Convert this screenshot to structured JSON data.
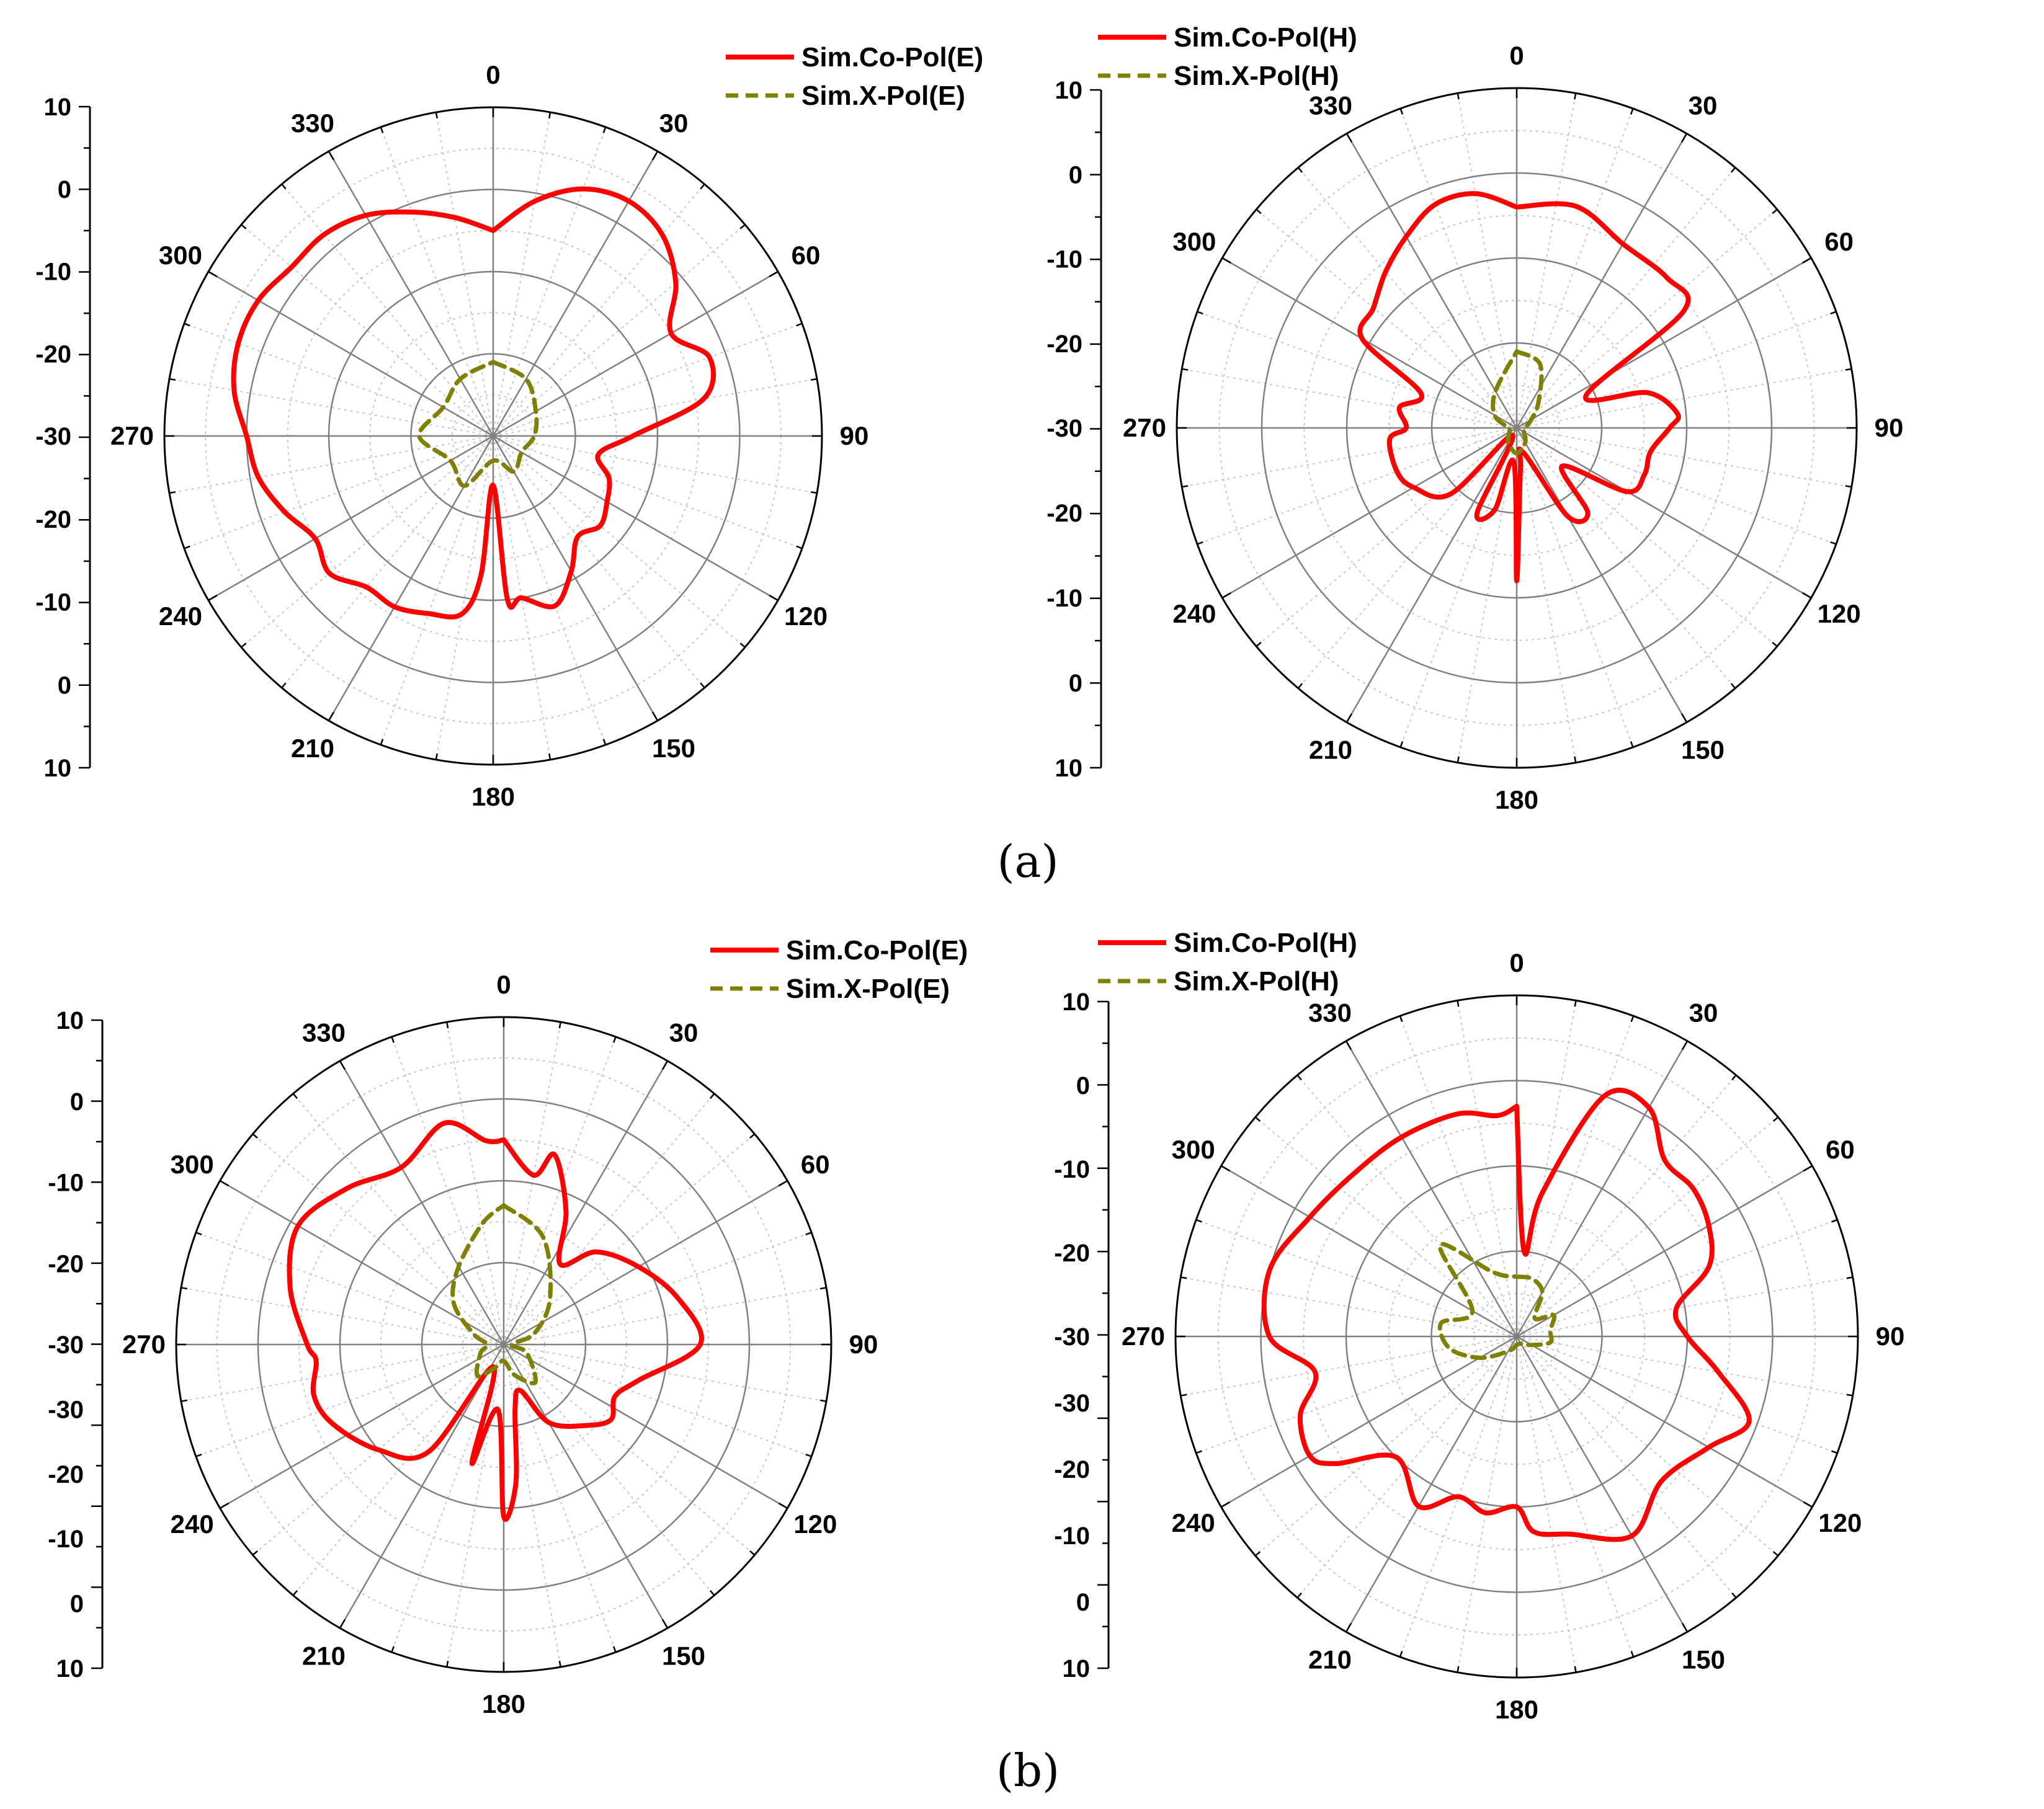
{
  "colors": {
    "co_pol": "#ff0000",
    "x_pol": "#808000",
    "axis": "#000000",
    "grid_major": "#808080",
    "grid_minor": "#c8c8c8"
  },
  "captions": {
    "a": "(a)",
    "b": "(b)"
  },
  "chart_data": [
    {
      "id": "a-left",
      "type": "polar-line",
      "title": "",
      "radial_axis_label": "",
      "rlim": [
        -30,
        10
      ],
      "radial_ticks": [
        10,
        0,
        -10,
        -20,
        -30
      ],
      "tick_labels_top": [
        "10",
        "0",
        "-10",
        "-20",
        "-30"
      ],
      "tick_labels_bottom": [
        "-20",
        "-10",
        "0",
        "10"
      ],
      "angle_labels": [
        "0",
        "30",
        "60",
        "90",
        "120",
        "150",
        "180",
        "210",
        "240",
        "270",
        "300",
        "330"
      ],
      "legend": [
        "Sim.Co-Pol(E)",
        "Sim.X-Pol(E)"
      ],
      "legend_position": "top-right",
      "series": [
        {
          "name": "Sim.Co-Pol(E)",
          "style": "solid",
          "theta": [
            0,
            10,
            20,
            30,
            40,
            50,
            60,
            70,
            80,
            90,
            100,
            110,
            120,
            130,
            140,
            150,
            160,
            170,
            175,
            180,
            185,
            190,
            200,
            210,
            220,
            230,
            240,
            250,
            260,
            270,
            280,
            290,
            300,
            310,
            320,
            330,
            340,
            350,
            360
          ],
          "r": [
            -5,
            -1,
            2,
            3,
            2,
            -1,
            -5,
            -2,
            -4,
            -13,
            -17,
            -15,
            -14,
            -13,
            -14,
            -11,
            -8,
            -10,
            -10,
            -24,
            -13,
            -8,
            -7,
            -6,
            -6,
            -4,
            -5,
            -3,
            -1,
            0,
            2,
            3,
            3,
            2,
            2,
            1,
            -1,
            -3,
            -5
          ]
        },
        {
          "name": "Sim.X-Pol(E)",
          "style": "dashed",
          "theta": [
            0,
            30,
            60,
            90,
            120,
            150,
            180,
            210,
            240,
            270,
            300,
            330,
            360
          ],
          "r": [
            -21,
            -22,
            -24,
            -25,
            -26,
            -25,
            -27,
            -23,
            -24,
            -21,
            -23,
            -22,
            -21
          ]
        }
      ]
    },
    {
      "id": "a-right",
      "type": "polar-line",
      "title": "",
      "radial_axis_label": "",
      "rlim": [
        -30,
        10
      ],
      "radial_ticks": [
        10,
        0,
        -10,
        -20,
        -30
      ],
      "tick_labels_top": [
        "10",
        "0",
        "-10",
        "-20",
        "-30"
      ],
      "tick_labels_bottom": [
        "-20",
        "-10",
        "0",
        "10"
      ],
      "angle_labels": [
        "0",
        "30",
        "60",
        "90",
        "120",
        "150",
        "180",
        "210",
        "240",
        "270",
        "300",
        "330"
      ],
      "legend": [
        "Sim.Co-Pol(H)",
        "Sim.X-Pol(H)"
      ],
      "legend_position": "top-right",
      "series": [
        {
          "name": "Sim.Co-Pol(H)",
          "style": "solid",
          "theta": [
            0,
            15,
            30,
            45,
            55,
            65,
            75,
            85,
            90,
            100,
            110,
            120,
            130,
            140,
            150,
            165,
            175,
            180,
            185,
            195,
            205,
            210,
            225,
            240,
            250,
            265,
            270,
            280,
            290,
            300,
            310,
            320,
            330,
            340,
            350,
            360
          ],
          "r": [
            -4,
            -3,
            -5,
            -5,
            -6,
            -21,
            -14,
            -11,
            -12,
            -14,
            -14,
            -15,
            -23,
            -17,
            -18,
            -27,
            -25,
            -12,
            -26,
            -20,
            -19,
            -29,
            -19,
            -16,
            -15,
            -15,
            -17,
            -16,
            -18,
            -9,
            -8,
            -6,
            -4,
            -2,
            -2,
            -4
          ]
        },
        {
          "name": "Sim.X-Pol(H)",
          "style": "dashed",
          "theta": [
            0,
            20,
            40,
            60,
            90,
            120,
            150,
            180,
            210,
            240,
            270,
            300,
            330,
            360
          ],
          "r": [
            -21,
            -22,
            -26,
            -28,
            -29,
            -29,
            -28,
            -27,
            -28,
            -29,
            -29,
            -27,
            -25,
            -21
          ]
        }
      ]
    },
    {
      "id": "b-left",
      "type": "polar-line",
      "title": "",
      "radial_axis_label": "",
      "rlim": [
        -30,
        10
      ],
      "radial_ticks": [
        10,
        0,
        -10,
        -20,
        -30
      ],
      "tick_labels_top": [
        "10",
        "0",
        "-10",
        "-20",
        "-30"
      ],
      "tick_labels_bottom": [
        "-30",
        "-20",
        "-10",
        "0",
        "10"
      ],
      "angle_labels": [
        "0",
        "30",
        "60",
        "90",
        "120",
        "150",
        "180",
        "210",
        "240",
        "270",
        "300",
        "330"
      ],
      "legend": [
        "Sim.Co-Pol(E)",
        "Sim.X-Pol(E)"
      ],
      "legend_position": "top-right",
      "series": [
        {
          "name": "Sim.Co-Pol(E)",
          "style": "solid",
          "theta": [
            0,
            10,
            15,
            25,
            35,
            45,
            60,
            75,
            90,
            105,
            115,
            125,
            135,
            150,
            160,
            170,
            175,
            180,
            185,
            195,
            205,
            215,
            230,
            245,
            255,
            265,
            270,
            285,
            300,
            315,
            330,
            345,
            355,
            360
          ],
          "r": [
            -5,
            -9,
            -6,
            -12,
            -18,
            -14,
            -11,
            -8,
            -6,
            -13,
            -15,
            -14,
            -16,
            -19,
            -24,
            -22,
            -13,
            -9,
            -22,
            -15,
            -27,
            -14,
            -10,
            -7,
            -6,
            -7,
            -6,
            -3,
            -1,
            -3,
            -5,
            -2,
            -5,
            -5
          ]
        },
        {
          "name": "Sim.X-Pol(E)",
          "style": "dashed",
          "theta": [
            0,
            20,
            45,
            70,
            90,
            110,
            140,
            160,
            180,
            200,
            220,
            250,
            270,
            290,
            310,
            330,
            350,
            360
          ],
          "r": [
            -13,
            -16,
            -22,
            -26,
            -29,
            -27,
            -24,
            -26,
            -28,
            -27,
            -25,
            -27,
            -28,
            -26,
            -22,
            -19,
            -15,
            -13
          ]
        }
      ]
    },
    {
      "id": "b-right",
      "type": "polar-line",
      "title": "",
      "radial_axis_label": "",
      "rlim": [
        -30,
        10
      ],
      "radial_ticks": [
        10,
        0,
        -10,
        -20,
        -30
      ],
      "tick_labels_top": [
        "10",
        "0",
        "-10",
        "-20",
        "-30"
      ],
      "tick_labels_bottom": [
        "-30",
        "-20",
        "-10",
        "0",
        "10"
      ],
      "angle_labels": [
        "0",
        "30",
        "60",
        "90",
        "120",
        "150",
        "180",
        "210",
        "240",
        "270",
        "300",
        "330"
      ],
      "legend": [
        "Sim.Co-Pol(H)",
        "Sim.X-Pol(H)"
      ],
      "legend_position": "top-right",
      "series": [
        {
          "name": "Sim.Co-Pol(H)",
          "style": "solid",
          "theta": [
            0,
            5,
            10,
            20,
            30,
            40,
            50,
            60,
            70,
            80,
            90,
            100,
            110,
            120,
            135,
            150,
            165,
            175,
            180,
            190,
            200,
            210,
            225,
            235,
            240,
            250,
            260,
            270,
            285,
            300,
            315,
            330,
            345,
            355,
            360
          ],
          "r": [
            -3,
            -20,
            -13,
            0,
            1,
            -3,
            -3,
            -4,
            -6,
            -11,
            -10,
            -6,
            -1,
            -4,
            -6,
            -3,
            -6,
            -7,
            -10,
            -9,
            -10,
            -7,
            -10,
            -4,
            -2,
            -3,
            -6,
            -1,
            0,
            -2,
            -3,
            -3,
            -3,
            -4,
            -3
          ]
        },
        {
          "name": "Sim.X-Pol(H)",
          "style": "dashed",
          "theta": [
            0,
            15,
            30,
            45,
            60,
            80,
            100,
            120,
            150,
            180,
            210,
            240,
            260,
            280,
            300,
            320,
            340,
            360
          ],
          "r": [
            -23,
            -23,
            -24,
            -27,
            -25,
            -26,
            -26,
            -28,
            -29,
            -29,
            -28,
            -25,
            -22,
            -21,
            -24,
            -16,
            -22,
            -23
          ]
        }
      ]
    }
  ]
}
